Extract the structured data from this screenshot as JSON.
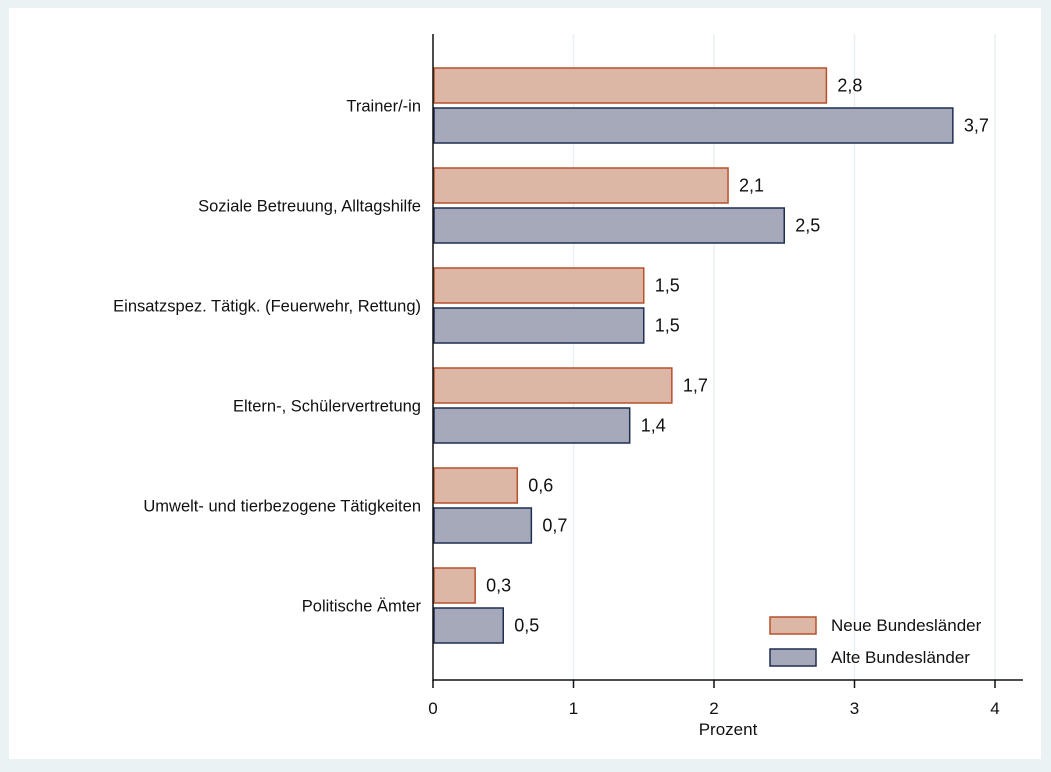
{
  "chart_data": {
    "type": "bar",
    "orientation": "horizontal",
    "categories": [
      "Trainer/-in",
      "Soziale Betreuung, Alltagshilfe",
      "Einsatzspez. Tätigk. (Feuerwehr, Rettung)",
      "Eltern-, Schülervertretung",
      "Umwelt- und tierbezogene Tätigkeiten",
      "Politische Ämter"
    ],
    "series": [
      {
        "name": "Neue Bundesländer",
        "values": [
          2.8,
          2.1,
          1.5,
          1.7,
          0.6,
          0.3
        ],
        "labels": [
          "2,8",
          "2,1",
          "1,5",
          "1,7",
          "0,6",
          "0,3"
        ],
        "fill": "#dcb7a6",
        "stroke": "#b8502c"
      },
      {
        "name": "Alte Bundesländer",
        "values": [
          3.7,
          2.5,
          1.5,
          1.4,
          0.7,
          0.5
        ],
        "labels": [
          "3,7",
          "2,5",
          "1,5",
          "1,4",
          "0,7",
          "0,5"
        ],
        "fill": "#a5a9b9",
        "stroke": "#1f2f52"
      }
    ],
    "xlabel": "Prozent",
    "ylabel": "",
    "xlim": [
      0,
      4.2
    ],
    "xticks": [
      0,
      1,
      2,
      3,
      4
    ],
    "xtick_labels": [
      "0",
      "1",
      "2",
      "3",
      "4"
    ],
    "grid": true,
    "legend_position": "bottom-right",
    "colors": {
      "background": "#eaf2f3",
      "plot_background": "#ffffff",
      "grid": "#e9eff3"
    }
  }
}
